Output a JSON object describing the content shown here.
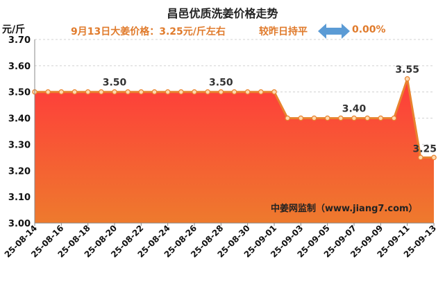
{
  "header": {
    "title": "昌邑优质洗姜价格走势",
    "unit": "元/斤",
    "price_line": "9月13日大姜价格：3.25元/斤左右",
    "compare_label": "较昨日持平",
    "change_pct": "0.00%",
    "arrow_icon": "double-arrow-icon"
  },
  "watermark": "中姜网监制（www.jiang7.com）",
  "colors": {
    "line": "#e8832e",
    "fill_top": "#ff3b3b",
    "fill_bottom": "#ee7a2d",
    "accent_text": "#e07b2c",
    "arrow": "#5b9bd5"
  },
  "chart_data": {
    "type": "area",
    "title": "昌邑优质洗姜价格走势",
    "ylabel": "元/斤",
    "ylim": [
      3.0,
      3.7
    ],
    "yticks": [
      "3.00",
      "3.10",
      "3.20",
      "3.30",
      "3.40",
      "3.50",
      "3.60",
      "3.70"
    ],
    "grid": true,
    "x_tick_labels": [
      "25-08-14",
      "25-08-16",
      "25-08-18",
      "25-08-20",
      "25-08-22",
      "25-08-24",
      "25-08-26",
      "25-08-28",
      "25-08-30",
      "25-09-01",
      "25-09-03",
      "25-09-05",
      "25-09-07",
      "25-09-09",
      "25-09-11",
      "25-09-13"
    ],
    "x": [
      "25-08-14",
      "25-08-15",
      "25-08-16",
      "25-08-17",
      "25-08-18",
      "25-08-19",
      "25-08-20",
      "25-08-21",
      "25-08-22",
      "25-08-23",
      "25-08-24",
      "25-08-25",
      "25-08-26",
      "25-08-27",
      "25-08-28",
      "25-08-29",
      "25-08-30",
      "25-08-31",
      "25-09-01",
      "25-09-02",
      "25-09-03",
      "25-09-04",
      "25-09-05",
      "25-09-06",
      "25-09-07",
      "25-09-08",
      "25-09-09",
      "25-09-10",
      "25-09-11",
      "25-09-12",
      "25-09-13"
    ],
    "values": [
      3.5,
      3.5,
      3.5,
      3.5,
      3.5,
      3.5,
      3.5,
      3.5,
      3.5,
      3.5,
      3.5,
      3.5,
      3.5,
      3.5,
      3.5,
      3.5,
      3.5,
      3.5,
      3.5,
      3.4,
      3.4,
      3.4,
      3.4,
      3.4,
      3.4,
      3.4,
      3.4,
      3.4,
      3.55,
      3.25,
      3.25
    ],
    "data_labels": [
      {
        "x": "25-08-20",
        "text": "3.50"
      },
      {
        "x": "25-08-28",
        "text": "3.50"
      },
      {
        "x": "25-09-07",
        "text": "3.40"
      },
      {
        "x": "25-09-11",
        "text": "3.55"
      },
      {
        "x": "25-09-13",
        "text": "3.25"
      }
    ]
  }
}
